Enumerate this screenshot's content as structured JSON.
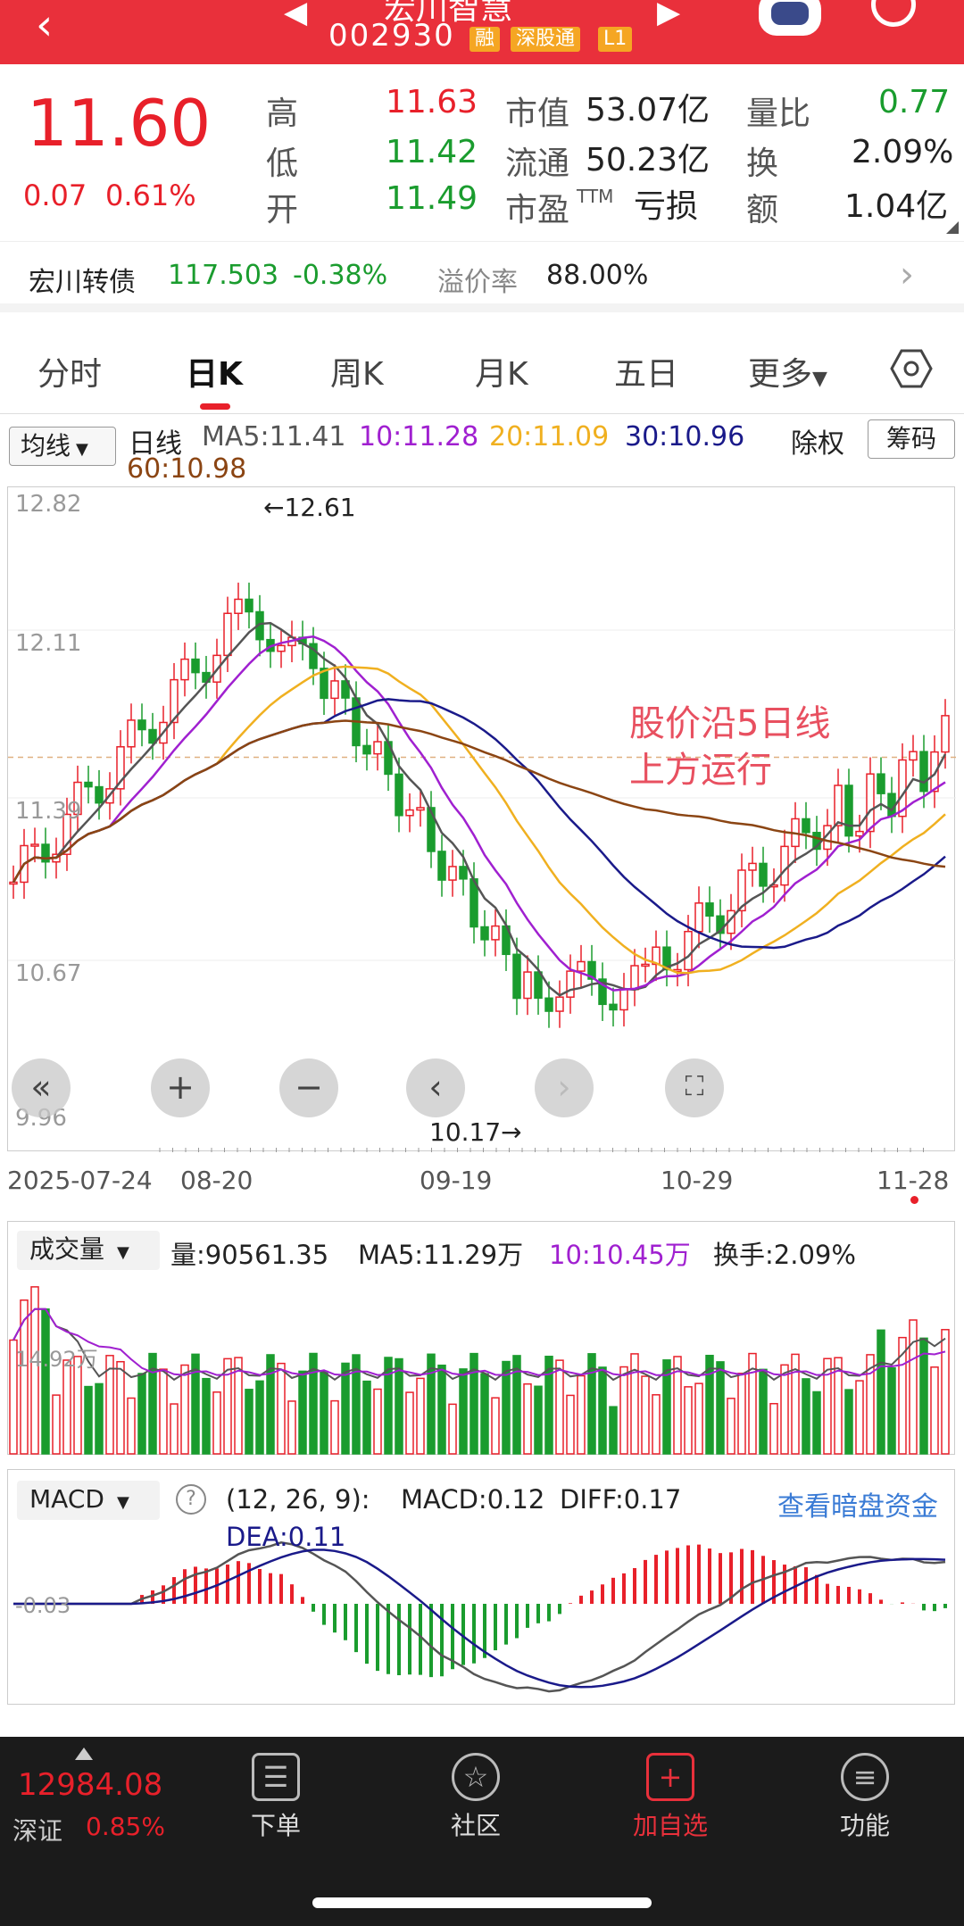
{
  "header": {
    "stock_name": "宏川智慧",
    "stock_code": "002930",
    "tags": [
      "融",
      "深股通",
      "L1"
    ]
  },
  "quote": {
    "price": "11.60",
    "change": "0.07",
    "change_pct": "0.61%",
    "high_label": "高",
    "high": "11.63",
    "low_label": "低",
    "low": "11.42",
    "open_label": "开",
    "open": "11.49",
    "mcap_label": "市值",
    "mcap": "53.07亿",
    "float_label": "流通",
    "float": "50.23亿",
    "pe_label": "市盈",
    "pe_sup": "TTM",
    "pe": "亏损",
    "vol_ratio_label": "量比",
    "vol_ratio": "0.77",
    "turnover_label": "换",
    "turnover": "2.09%",
    "amount_label": "额",
    "amount": "1.04亿"
  },
  "bond": {
    "name": "宏川转债",
    "price": "117.503",
    "change": "-0.38%",
    "premium_label": "溢价率",
    "premium": "88.00%"
  },
  "tabs": [
    "分时",
    "日K",
    "周K",
    "月K",
    "五日",
    "更多"
  ],
  "ma_bar": {
    "selector": "均线",
    "period": "日线",
    "ma5": "MA5:11.41",
    "ma10": "10:11.28",
    "ma20": "20:11.09",
    "ma30": "30:10.96",
    "ma60": "60:10.98",
    "adjust": "除权",
    "chips": "筹码"
  },
  "kchart": {
    "y_labels": [
      "12.82",
      "12.11",
      "11.39",
      "10.67",
      "9.96"
    ],
    "high_mark": "←12.61",
    "low_mark": "10.17→",
    "annotation_line1": "股价沿5日线",
    "annotation_line2": "上方运行",
    "x_labels": [
      "2025-07-24",
      "08-20",
      "09-19",
      "10-29",
      "11-28"
    ]
  },
  "volume": {
    "selector": "成交量",
    "vol": "量:90561.35",
    "ma5": "MA5:11.29万",
    "ma10": "10:10.45万",
    "turnover": "换手:2.09%",
    "y_label": "14.92万"
  },
  "macd": {
    "selector": "MACD",
    "params": "(12, 26, 9):",
    "macd": "MACD:0.12",
    "diff": "DIFF:0.17",
    "dea": "DEA:0.11",
    "link": "查看暗盘资金",
    "y_label": "-0.03"
  },
  "bottom_nav": {
    "index_value": "12984.08",
    "index_name": "深证",
    "index_change": "0.85%",
    "items": [
      "下单",
      "社区",
      "加自选",
      "功能"
    ]
  },
  "colors": {
    "up": "#e8202a",
    "down": "#1a9c2e",
    "ma5": "#555555",
    "ma10": "#a020d0",
    "ma20": "#f0b020",
    "ma30": "#1a1a8a",
    "ma60": "#8b4513"
  }
}
